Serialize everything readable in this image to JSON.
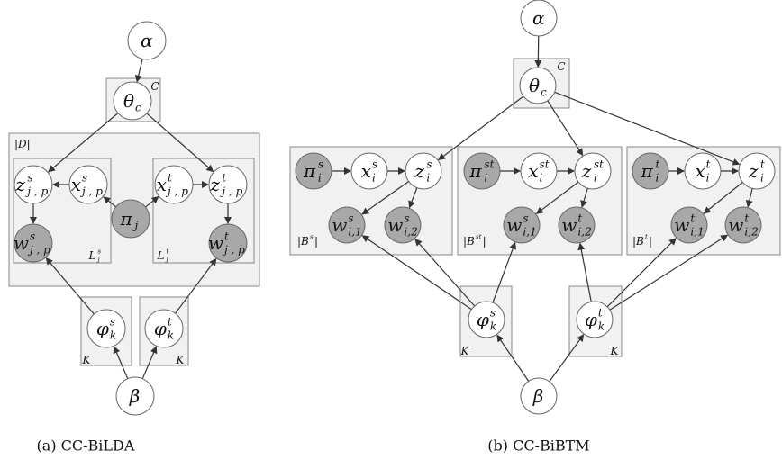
{
  "diagrams": [
    {
      "caption": "(a) CC-BiLDA",
      "nodes": [
        {
          "base": "α"
        },
        {
          "base": "θ",
          "sub": "c"
        },
        {
          "base": "z",
          "sup": "s",
          "sub": "j , p"
        },
        {
          "base": "x",
          "sup": "s",
          "sub": "j , p"
        },
        {
          "base": "π",
          "sub": "j"
        },
        {
          "base": "x",
          "sup": "t",
          "sub": "j , p"
        },
        {
          "base": "z",
          "sup": "t",
          "sub": "j , p"
        },
        {
          "base": "w",
          "sup": "s",
          "sub": "j , p"
        },
        {
          "base": "w",
          "sup": "t",
          "sub": "j , p"
        },
        {
          "base": "φ",
          "sup": "s",
          "sub": "k"
        },
        {
          "base": "φ",
          "sup": "t",
          "sub": "k"
        },
        {
          "base": "β"
        }
      ],
      "plates": [
        {
          "base": "C"
        },
        {
          "base": "|D|"
        },
        {
          "base": "L",
          "sup": "s",
          "sub": "j"
        },
        {
          "base": "L",
          "sup": "t",
          "sub": "j"
        },
        {
          "base": "K"
        },
        {
          "base": "K"
        }
      ]
    },
    {
      "caption": "(b) CC-BiBTM",
      "nodes": [
        {
          "base": "α"
        },
        {
          "base": "θ",
          "sub": "c"
        },
        {
          "base": "π",
          "sup": "s",
          "sub": "i"
        },
        {
          "base": "x",
          "sup": "s",
          "sub": "i"
        },
        {
          "base": "z",
          "sup": "s",
          "sub": "i"
        },
        {
          "base": "w",
          "sup": "s",
          "sub": "i,1"
        },
        {
          "base": "w",
          "sup": "s",
          "sub": "i,2"
        },
        {
          "base": "π",
          "sup": "st",
          "sub": "i"
        },
        {
          "base": "x",
          "sup": "st",
          "sub": "i"
        },
        {
          "base": "z",
          "sup": "st",
          "sub": "i"
        },
        {
          "base": "w",
          "sup": "s",
          "sub": "i,1"
        },
        {
          "base": "w",
          "sup": "t",
          "sub": "i,2"
        },
        {
          "base": "π",
          "sup": "t",
          "sub": "i"
        },
        {
          "base": "x",
          "sup": "t",
          "sub": "i"
        },
        {
          "base": "z",
          "sup": "t",
          "sub": "i"
        },
        {
          "base": "w",
          "sup": "t",
          "sub": "i,1"
        },
        {
          "base": "w",
          "sup": "t",
          "sub": "i,2"
        },
        {
          "base": "φ",
          "sup": "s",
          "sub": "k"
        },
        {
          "base": "φ",
          "sup": "t",
          "sub": "k"
        },
        {
          "base": "β"
        }
      ],
      "plates": [
        {
          "base": "C"
        },
        {
          "base": "|B",
          "sup": "s",
          "post": "|"
        },
        {
          "base": "|B",
          "sup": "st",
          "post": "|"
        },
        {
          "base": "|B",
          "sup": "t",
          "post": "|"
        },
        {
          "base": "K"
        },
        {
          "base": "K"
        }
      ]
    }
  ]
}
